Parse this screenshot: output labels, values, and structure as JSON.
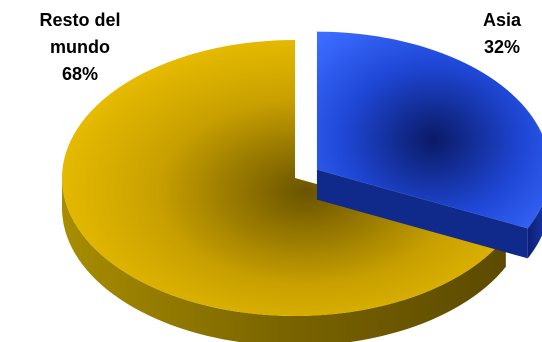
{
  "chart_data": {
    "type": "pie",
    "style": "3d-exploded",
    "slices": [
      {
        "label": "Asia",
        "value": 32,
        "value_label": "32%",
        "color": "#3366ff",
        "exploded": true
      },
      {
        "label": "Resto del mundo",
        "label_lines": [
          "Resto del",
          "mundo"
        ],
        "value": 68,
        "value_label": "68%",
        "color": "#ffcc00",
        "exploded": false
      }
    ],
    "legend": "none"
  }
}
